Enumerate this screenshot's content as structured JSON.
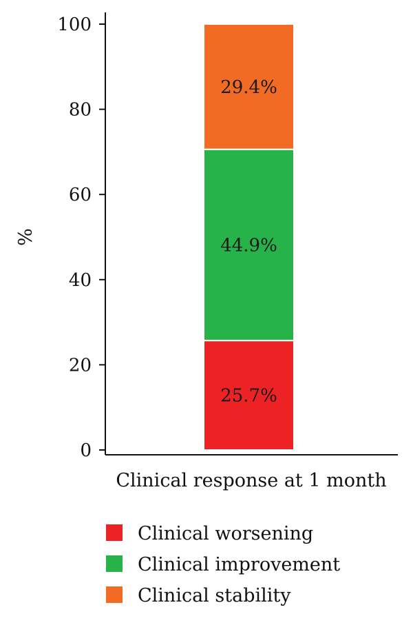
{
  "chart_data": {
    "type": "bar",
    "stacked": true,
    "categories": [
      "Clinical response at 1 month"
    ],
    "xlabel": "Clinical response at 1 month",
    "ylabel": "%",
    "ylim": [
      0,
      100
    ],
    "yticks": [
      0,
      20,
      40,
      60,
      80,
      100
    ],
    "grid": false,
    "legend_position": "bottom",
    "series": [
      {
        "name": "Clinical worsening",
        "values": [
          25.7
        ],
        "label": "25.7%",
        "color": "#ed2224"
      },
      {
        "name": "Clinical improvement",
        "values": [
          44.9
        ],
        "label": "44.9%",
        "color": "#27b34a"
      },
      {
        "name": "Clinical stability",
        "values": [
          29.4
        ],
        "label": "29.4%",
        "color": "#f26b24"
      }
    ]
  }
}
